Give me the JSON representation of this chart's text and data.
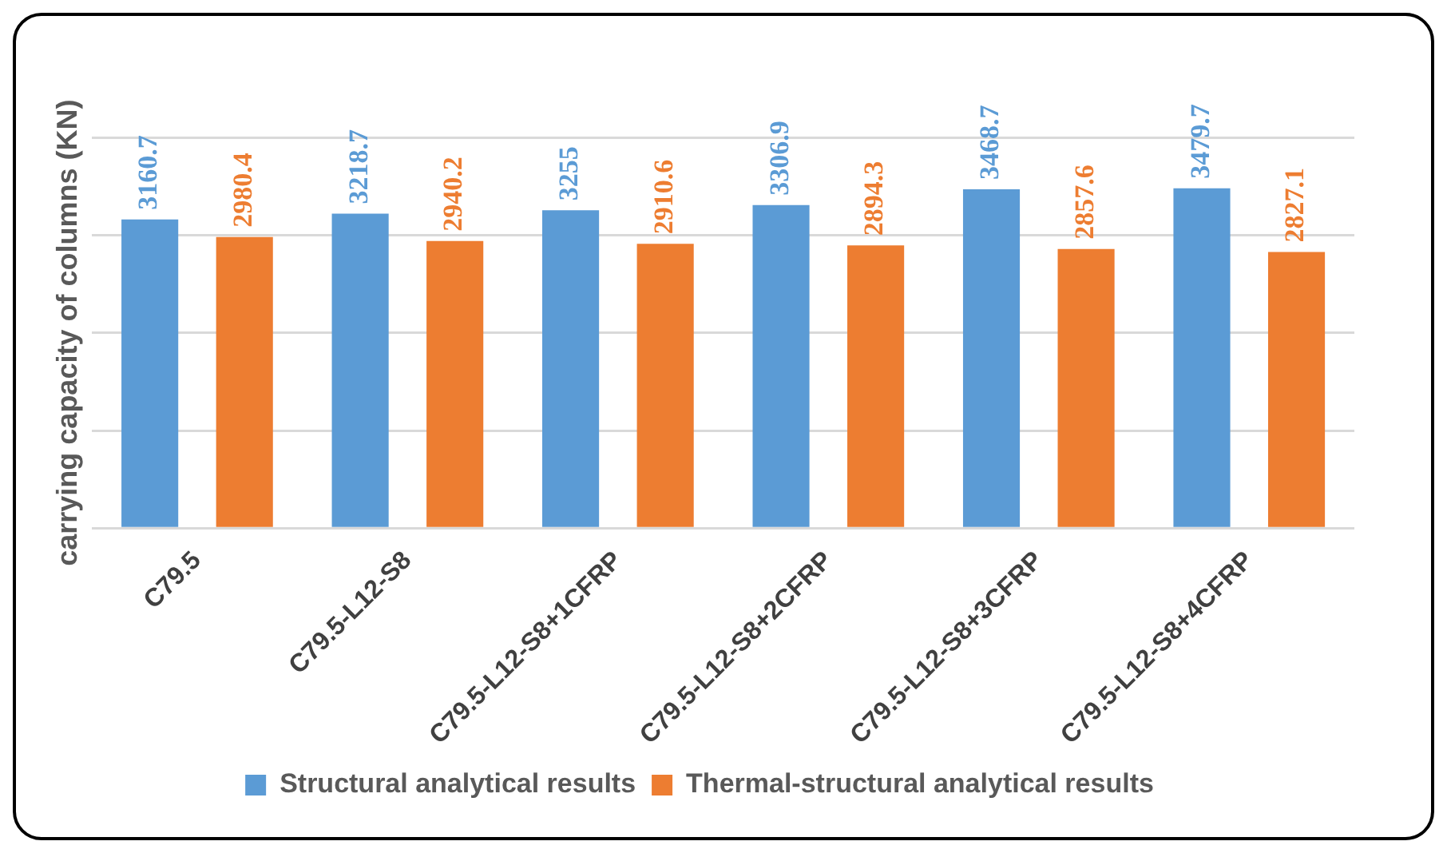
{
  "chart_data": {
    "type": "bar",
    "ylabel": "carrying capacity of columns (KN)",
    "categories": [
      "C79.5",
      "C79.5-L12-S8",
      "C79.5-L12-S8+1CFRP",
      "C79.5-L12-S8+2CFRP",
      "C79.5-L12-S8+3CFRP",
      "C79.5-L12-S8+4CFRP"
    ],
    "series": [
      {
        "name": "Structural analytical results",
        "color": "#5b9bd5",
        "values": [
          3160.7,
          3218.7,
          3255,
          3306.9,
          3468.7,
          3479.7
        ]
      },
      {
        "name": "Thermal-structural analytical results",
        "color": "#ed7d31",
        "values": [
          2980.4,
          2940.2,
          2910.6,
          2894.3,
          2857.6,
          2827.1
        ]
      }
    ],
    "ylim": [
      0,
      4000
    ],
    "yticks": [
      {
        "value": 0,
        "label": null
      },
      {
        "value": 1000,
        "label": null
      },
      {
        "value": 2000,
        "label": null
      },
      {
        "value": 3000,
        "label": null
      },
      {
        "value": 4000,
        "label": null
      }
    ],
    "tick_labels": "x",
    "grid": "y",
    "legend": "bottom",
    "data_labels": true
  }
}
